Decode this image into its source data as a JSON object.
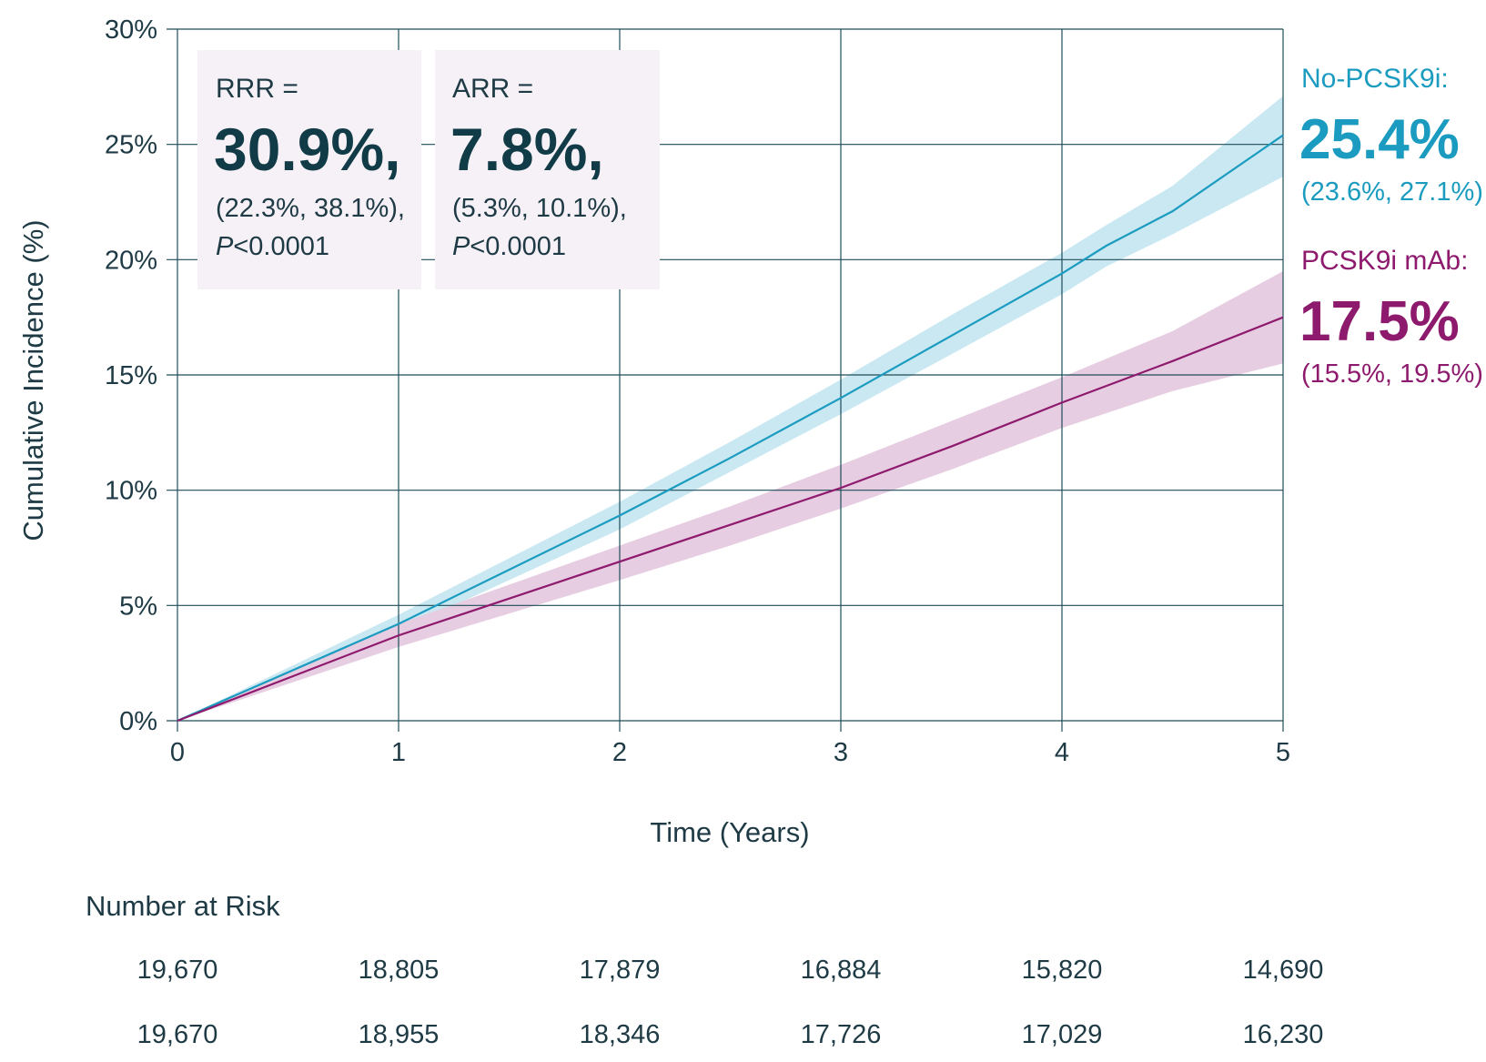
{
  "chart_data": {
    "type": "line",
    "xlabel": "Time (Years)",
    "ylabel": "Cumulative Incidence (%)",
    "xlim": [
      0,
      5
    ],
    "ylim": [
      0,
      30
    ],
    "x_ticks": [
      "0",
      "1",
      "2",
      "3",
      "4",
      "5"
    ],
    "y_ticks": [
      "0%",
      "5%",
      "10%",
      "15%",
      "20%",
      "25%",
      "30%"
    ],
    "grid": true,
    "series": [
      {
        "name": "No-PCSK9i:",
        "color": "#1a9bbf",
        "band_color": "#c9e8f2",
        "x": [
          0,
          1,
          2,
          2.5,
          3,
          3.5,
          4,
          4.2,
          4.5,
          5
        ],
        "values": [
          0,
          4.2,
          8.9,
          11.4,
          14.0,
          16.7,
          19.4,
          20.6,
          22.1,
          25.4
        ],
        "ci_lower": [
          0,
          3.9,
          8.3,
          10.8,
          13.3,
          15.9,
          18.5,
          19.7,
          21.1,
          23.6
        ],
        "ci_upper": [
          0,
          4.6,
          9.5,
          12.1,
          14.8,
          17.6,
          20.3,
          21.5,
          23.2,
          27.1
        ],
        "final_value": "25.4%",
        "final_ci": "(23.6%, 27.1%)"
      },
      {
        "name": "PCSK9i mAb:",
        "color": "#8e1a6e",
        "band_color": "#e7cde1",
        "x": [
          0,
          1,
          2,
          2.5,
          3,
          3.5,
          4,
          4.5,
          5
        ],
        "values": [
          0,
          3.7,
          6.9,
          8.5,
          10.1,
          11.9,
          13.8,
          15.6,
          17.5
        ],
        "ci_lower": [
          0,
          3.2,
          6.1,
          7.6,
          9.2,
          10.9,
          12.7,
          14.3,
          15.5
        ],
        "ci_upper": [
          0,
          4.2,
          7.6,
          9.3,
          11.1,
          13.0,
          14.9,
          16.9,
          19.5
        ],
        "final_value": "17.5%",
        "final_ci": "(15.5%, 19.5%)"
      }
    ],
    "annotations": [
      {
        "label": "RRR =",
        "value": "30.9%,",
        "ci": "(22.3%, 38.1%),",
        "p_italic": "P",
        "p_rest": "<0.0001"
      },
      {
        "label": "ARR =",
        "value": "7.8%,",
        "ci": "(5.3%, 10.1%),",
        "p_italic": "P",
        "p_rest": "<0.0001"
      }
    ],
    "box_color": "#f6f0f7",
    "grid_color": "#1e4d5a",
    "number_at_risk": {
      "title": "Number at Risk",
      "rows": [
        [
          "19,670",
          "18,805",
          "17,879",
          "16,884",
          "15,820",
          "14,690"
        ],
        [
          "19,670",
          "18,955",
          "18,346",
          "17,726",
          "17,029",
          "16,230"
        ]
      ]
    }
  }
}
